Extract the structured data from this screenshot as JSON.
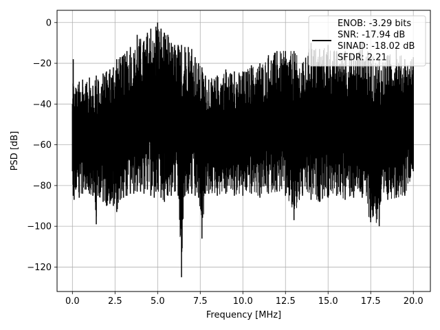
{
  "chart_data": {
    "type": "line",
    "xlabel": "Frequency [MHz]",
    "ylabel": "PSD [dB]",
    "xlim": [
      -0.9,
      21.0
    ],
    "ylim": [
      -132,
      6
    ],
    "xticks": [
      0.0,
      2.5,
      5.0,
      7.5,
      10.0,
      12.5,
      15.0,
      17.5,
      20.0
    ],
    "xtick_labels": [
      "0.0",
      "2.5",
      "5.0",
      "7.5",
      "10.0",
      "12.5",
      "15.0",
      "17.5",
      "20.0"
    ],
    "yticks": [
      0,
      -20,
      -40,
      -60,
      -80,
      -100,
      -120
    ],
    "ytick_labels": [
      "0",
      "−20",
      "−40",
      "−60",
      "−80",
      "−100",
      "−120"
    ],
    "grid": true,
    "legend_position": "top-right",
    "line_color": "#000000",
    "legend": {
      "lines": [
        "ENOB: -3.29 bits",
        "SNR: -17.94 dB",
        "SINAD: -18.02 dB",
        "SFDR: 2.21"
      ]
    },
    "series": [
      {
        "x": [
          0.0,
          0.05,
          0.1,
          0.2,
          0.4,
          0.6,
          0.8,
          1.0,
          1.2,
          1.4,
          1.5,
          1.8,
          2.0,
          2.2,
          2.4,
          2.6,
          2.8,
          3.0,
          3.2,
          3.4,
          3.6,
          3.8,
          4.0,
          4.2,
          4.4,
          4.6,
          4.8,
          4.9,
          5.0,
          5.2,
          5.4,
          5.6,
          5.8,
          6.0,
          6.2,
          6.4,
          6.6,
          6.8,
          7.0,
          7.2,
          7.4,
          7.6,
          7.8,
          8.0,
          8.5,
          9.0,
          9.5,
          10.0,
          10.5,
          11.0,
          11.5,
          12.0,
          12.5,
          13.0,
          13.5,
          14.0,
          14.5,
          15.0,
          15.5,
          16.0,
          16.5,
          17.0,
          17.5,
          18.0,
          18.5,
          19.0,
          19.5,
          20.0
        ],
        "y_upper": [
          -40,
          -18,
          -35,
          -32,
          -29,
          -28,
          -30,
          -27,
          -31,
          -26,
          -28,
          -25,
          -24,
          -23,
          -22,
          -18,
          -17,
          -16,
          -14,
          -12,
          -15,
          -6,
          -8,
          -9,
          -5,
          -3,
          -10,
          -2,
          0,
          -3,
          -5,
          -6,
          -10,
          -11,
          -11,
          -11,
          -12,
          -12,
          -13,
          -17,
          -20,
          -22,
          -26,
          -28,
          -26,
          -23,
          -24,
          -24,
          -21,
          -20,
          -16,
          -14,
          -14,
          -14,
          -20,
          -10,
          -13,
          -11,
          -14,
          -14,
          -16,
          -10,
          -16,
          -18,
          -16,
          -13,
          -18,
          -17
        ],
        "y_lower": [
          -73,
          -85,
          -87,
          -82,
          -86,
          -84,
          -82,
          -84,
          -85,
          -99,
          -85,
          -88,
          -90,
          -89,
          -90,
          -93,
          -87,
          -86,
          -85,
          -84,
          -84,
          -83,
          -83,
          -84,
          -82,
          -85,
          -86,
          -83,
          -82,
          -86,
          -88,
          -85,
          -85,
          -83,
          -85,
          -125,
          -85,
          -84,
          -84,
          -85,
          -86,
          -106,
          -84,
          -84,
          -85,
          -84,
          -85,
          -85,
          -84,
          -86,
          -84,
          -83,
          -85,
          -97,
          -85,
          -87,
          -88,
          -86,
          -85,
          -87,
          -86,
          -86,
          -98,
          -100,
          -87,
          -86,
          -85,
          -73
        ]
      }
    ]
  }
}
